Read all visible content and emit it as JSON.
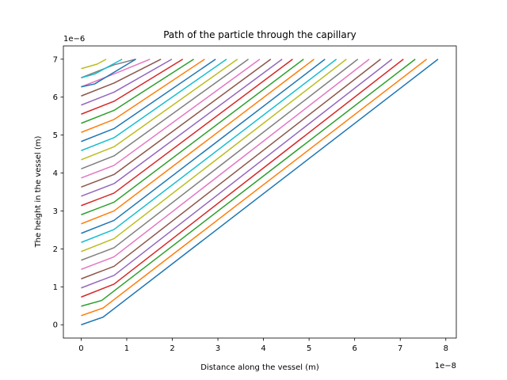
{
  "chart_data": {
    "type": "line",
    "title": "Path of the particle through the capillary",
    "xlabel": "Distance along the vessel (m)",
    "ylabel": "The height in the vessel (m)",
    "x_offset_text": "1e−8",
    "y_offset_text": "1e−6",
    "x_scale": 1e-08,
    "y_scale": 1e-06,
    "xlim": [
      -0.39,
      8.23
    ],
    "ylim": [
      -0.35,
      7.35
    ],
    "x_ticks": [
      0,
      1,
      2,
      3,
      4,
      5,
      6,
      7,
      8
    ],
    "x_tick_labels": [
      "0",
      "1",
      "2",
      "3",
      "4",
      "5",
      "6",
      "7",
      "8"
    ],
    "y_ticks": [
      0,
      1,
      2,
      3,
      4,
      5,
      6,
      7
    ],
    "y_tick_labels": [
      "0",
      "1",
      "2",
      "3",
      "4",
      "5",
      "6",
      "7"
    ],
    "grid": false,
    "legend": "none",
    "top_value": 7.0,
    "line_colors": [
      "#1f77b4",
      "#ff7f0e",
      "#2ca02c",
      "#d62728",
      "#9467bd",
      "#8c564b",
      "#e377c2",
      "#7f7f7f",
      "#bcbd22",
      "#17becf"
    ],
    "series": [
      {
        "values": [
          [
            0.0,
            0.0
          ],
          [
            0.48,
            0.2
          ],
          [
            7.83,
            7.0
          ]
        ]
      },
      {
        "values": [
          [
            0.0,
            0.24
          ],
          [
            0.48,
            0.44
          ],
          [
            7.58,
            7.0
          ]
        ]
      },
      {
        "values": [
          [
            0.0,
            0.49
          ],
          [
            0.45,
            0.64
          ],
          [
            7.33,
            7.0
          ]
        ]
      },
      {
        "values": [
          [
            0.0,
            0.73
          ],
          [
            0.72,
            1.07
          ],
          [
            7.07,
            7.0
          ]
        ]
      },
      {
        "values": [
          [
            0.0,
            0.97
          ],
          [
            0.72,
            1.3
          ],
          [
            6.82,
            7.0
          ]
        ]
      },
      {
        "values": [
          [
            0.0,
            1.21
          ],
          [
            0.72,
            1.54
          ],
          [
            6.57,
            7.0
          ]
        ]
      },
      {
        "values": [
          [
            0.0,
            1.46
          ],
          [
            0.72,
            1.79
          ],
          [
            6.32,
            7.0
          ]
        ]
      },
      {
        "values": [
          [
            0.0,
            1.7
          ],
          [
            0.72,
            2.03
          ],
          [
            6.07,
            7.0
          ]
        ]
      },
      {
        "values": [
          [
            0.0,
            1.93
          ],
          [
            0.72,
            2.27
          ],
          [
            5.82,
            7.0
          ]
        ]
      },
      {
        "values": [
          [
            0.0,
            2.17
          ],
          [
            0.72,
            2.51
          ],
          [
            5.6,
            7.0
          ]
        ]
      },
      {
        "values": [
          [
            0.0,
            2.41
          ],
          [
            0.72,
            2.75
          ],
          [
            5.35,
            7.0
          ]
        ]
      },
      {
        "values": [
          [
            0.0,
            2.66
          ],
          [
            0.72,
            3.0
          ],
          [
            5.11,
            7.0
          ]
        ]
      },
      {
        "values": [
          [
            0.0,
            2.9
          ],
          [
            0.72,
            3.23
          ],
          [
            4.88,
            7.0
          ]
        ]
      },
      {
        "values": [
          [
            0.0,
            3.14
          ],
          [
            0.72,
            3.47
          ],
          [
            4.64,
            7.0
          ]
        ]
      },
      {
        "values": [
          [
            0.0,
            3.39
          ],
          [
            0.72,
            3.72
          ],
          [
            4.41,
            7.0
          ]
        ]
      },
      {
        "values": [
          [
            0.0,
            3.63
          ],
          [
            0.72,
            3.96
          ],
          [
            4.16,
            7.0
          ]
        ]
      },
      {
        "values": [
          [
            0.0,
            3.87
          ],
          [
            0.72,
            4.2
          ],
          [
            3.92,
            7.0
          ]
        ]
      },
      {
        "values": [
          [
            0.0,
            4.11
          ],
          [
            0.72,
            4.45
          ],
          [
            3.67,
            7.0
          ]
        ]
      },
      {
        "values": [
          [
            0.0,
            4.35
          ],
          [
            0.72,
            4.69
          ],
          [
            3.43,
            7.0
          ]
        ]
      },
      {
        "values": [
          [
            0.0,
            4.59
          ],
          [
            0.72,
            4.93
          ],
          [
            3.19,
            7.0
          ]
        ]
      },
      {
        "values": [
          [
            0.0,
            4.83
          ],
          [
            0.72,
            5.17
          ],
          [
            2.95,
            7.0
          ]
        ]
      },
      {
        "values": [
          [
            0.0,
            5.07
          ],
          [
            0.72,
            5.41
          ],
          [
            2.71,
            7.0
          ]
        ]
      },
      {
        "values": [
          [
            0.0,
            5.31
          ],
          [
            0.72,
            5.65
          ],
          [
            2.47,
            7.0
          ]
        ]
      },
      {
        "values": [
          [
            0.0,
            5.55
          ],
          [
            0.72,
            5.89
          ],
          [
            2.23,
            7.0
          ]
        ]
      },
      {
        "values": [
          [
            0.0,
            5.79
          ],
          [
            0.72,
            6.13
          ],
          [
            1.99,
            7.0
          ]
        ]
      },
      {
        "values": [
          [
            0.0,
            6.03
          ],
          [
            0.72,
            6.37
          ],
          [
            1.75,
            7.0
          ]
        ]
      },
      {
        "values": [
          [
            0.0,
            6.27
          ],
          [
            0.72,
            6.61
          ],
          [
            1.51,
            7.0
          ]
        ]
      },
      {
        "values": [
          [
            0.0,
            6.51
          ],
          [
            0.72,
            6.85
          ],
          [
            1.2,
            7.0
          ]
        ]
      },
      {
        "values": [
          [
            0.0,
            6.75
          ],
          [
            0.35,
            6.87
          ],
          [
            0.55,
            7.0
          ]
        ]
      },
      {
        "values": [
          [
            0.0,
            6.51
          ],
          [
            0.3,
            6.61
          ],
          [
            0.9,
            7.0
          ]
        ]
      },
      {
        "values": [
          [
            0.0,
            6.27
          ],
          [
            0.3,
            6.35
          ],
          [
            1.2,
            7.0
          ]
        ]
      }
    ]
  }
}
